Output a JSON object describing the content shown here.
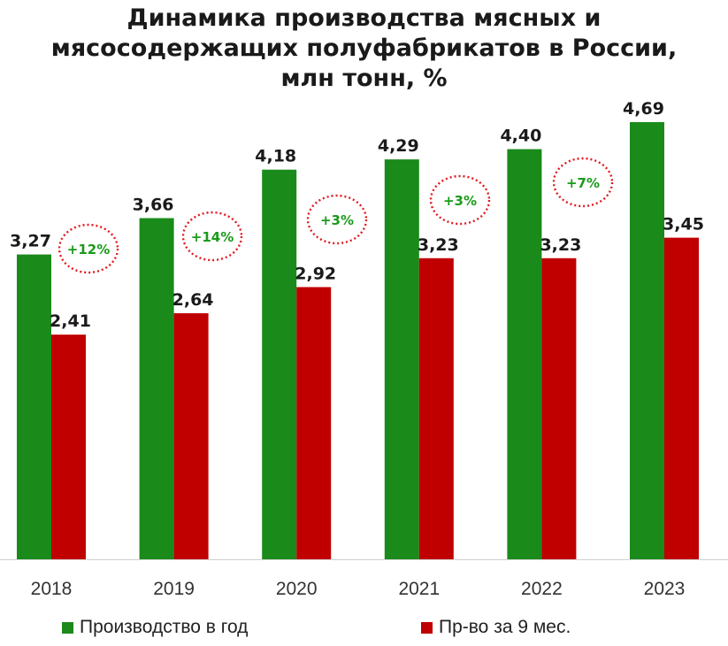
{
  "title_lines": [
    "Динамика производства мясных и",
    "мясосодержащих полуфабрикатов в России,",
    "млн тонн, %"
  ],
  "colors": {
    "green": "#1a8a1a",
    "red": "#c00000",
    "growth_text": "#1a9a1a",
    "growth_ring": "#e0181e",
    "label": "#1a1a1a"
  },
  "legend": {
    "series_0": "Производство в год",
    "series_1": "Пр-во за 9 мес."
  },
  "chart_data": {
    "type": "bar",
    "title": "Динамика производства мясных и мясосодержащих полуфабрикатов в России, млн тонн, %",
    "categories": [
      "2018",
      "2019",
      "2020",
      "2021",
      "2022",
      "2023"
    ],
    "series": [
      {
        "name": "Производство в год",
        "values": [
          3.27,
          3.66,
          4.18,
          4.29,
          4.4,
          4.69
        ],
        "labels": [
          "3,27",
          "3,66",
          "4,18",
          "4,29",
          "4,40",
          "4,69"
        ]
      },
      {
        "name": "Пр-во за 9 мес.",
        "values": [
          2.41,
          2.64,
          2.92,
          3.23,
          3.23,
          3.45
        ],
        "labels": [
          "2,41",
          "2,64",
          "2,92",
          "3,23",
          "3,23",
          "3,45"
        ]
      }
    ],
    "growth_annotations": [
      "+12%",
      "+14%",
      "+3%",
      "+3%",
      "+7%"
    ],
    "ylim": [
      0,
      4.69
    ],
    "grid": false,
    "legend_position": "bottom"
  }
}
